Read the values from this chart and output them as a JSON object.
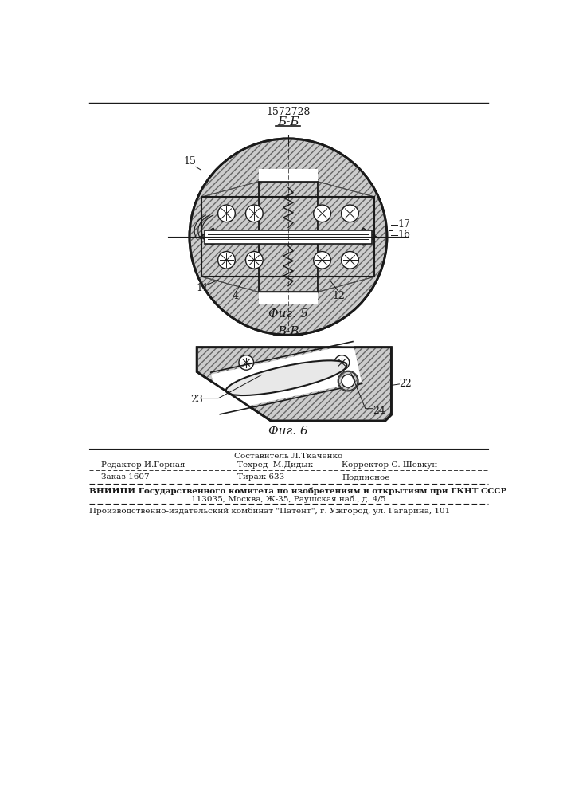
{
  "patent_number": "1572728",
  "fig5_label": "Б-Б",
  "fig6_label": "В-В",
  "fig5_caption": "Фиг. 5",
  "fig6_caption": "Фиг. 6",
  "footer_line1_center_top": "Составитель Л.Ткаченко",
  "footer_line1_left": "Редактор И.Горная",
  "footer_line1_center": "Техред  М.Дидык",
  "footer_line1_right": "Корректор С. Шевкун",
  "footer_line2_left": "Заказ 1607",
  "footer_line2_center": "Тираж 633",
  "footer_line2_right": "Подписное",
  "footer_line3": "ВНИИПИ Государственного комитета по изобретениям и открытиям при ГКНТ СССР",
  "footer_line4": "113035, Москва, Ж-35, Раушская наб., д. 4/5",
  "footer_line5": "Производственно-издательский комбинат \"Патент\", г. Ужгород, ул. Гагарина, 101",
  "bg_color": "#ffffff",
  "line_color": "#1a1a1a",
  "hatch_gray": "#aaaaaa",
  "fill_gray": "#cccccc",
  "white": "#ffffff"
}
